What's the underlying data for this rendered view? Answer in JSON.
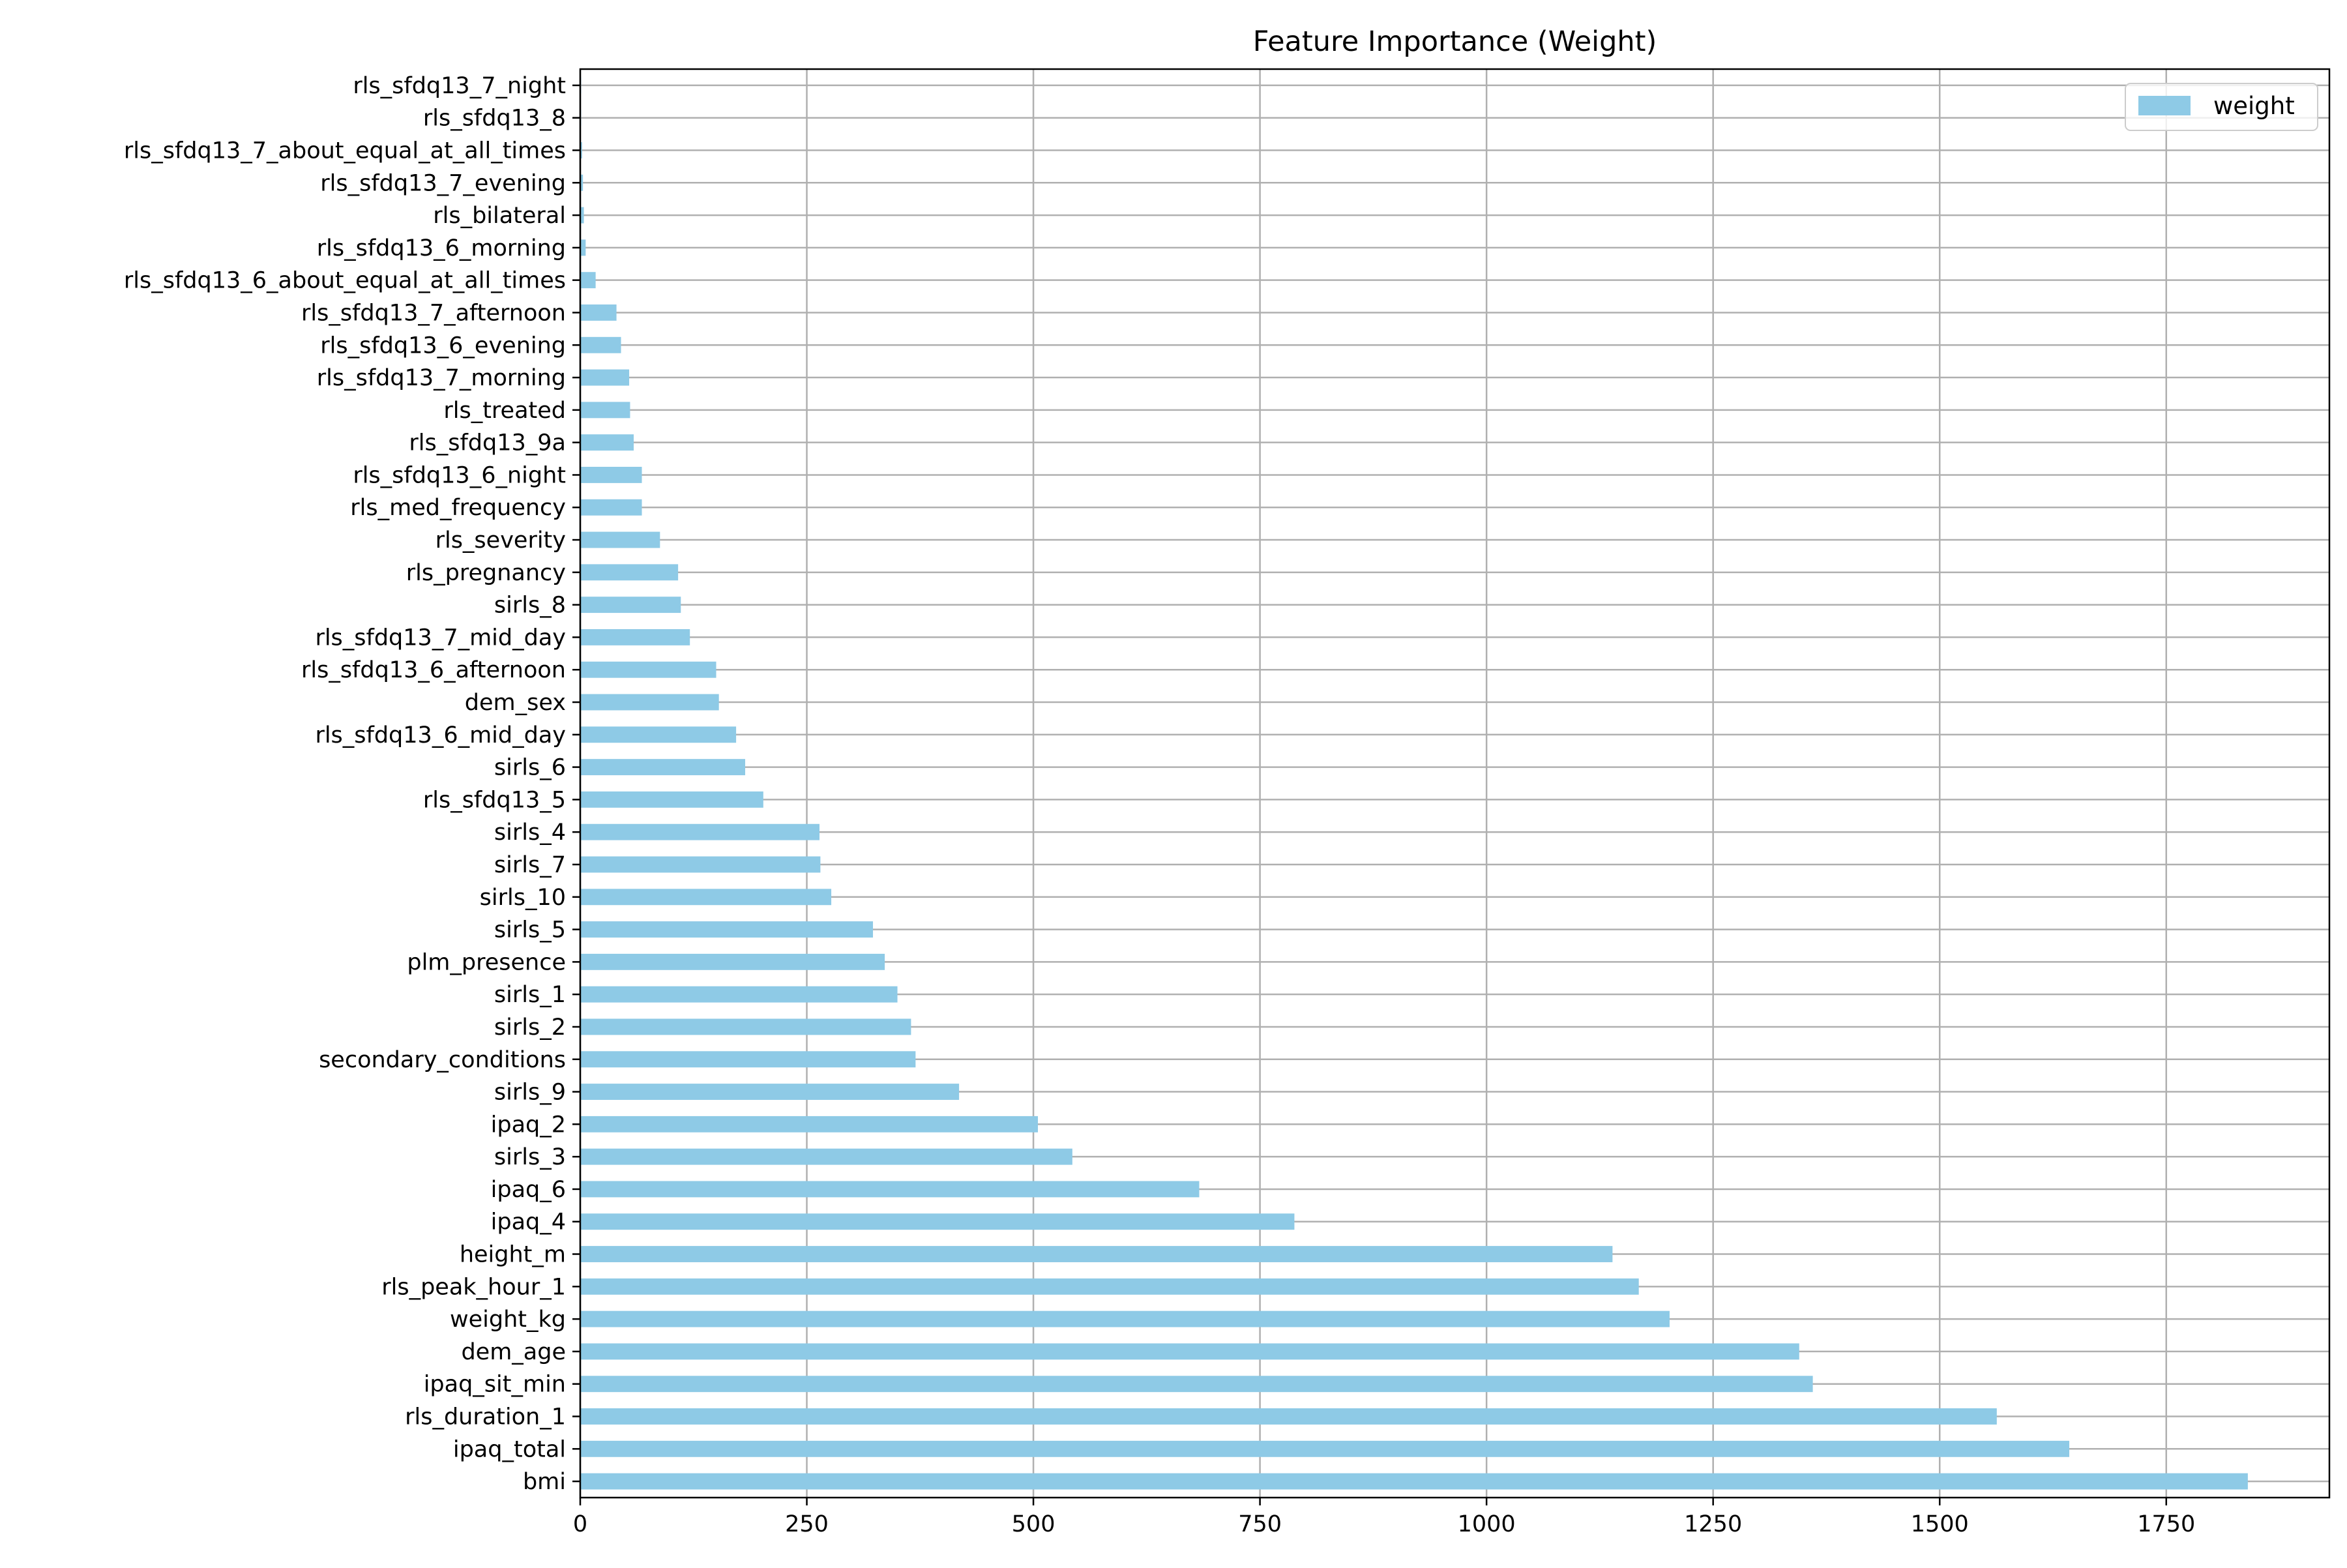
{
  "chart_data": {
    "type": "bar",
    "orientation": "horizontal",
    "title": "Feature Importance (Weight)",
    "xlabel": "",
    "ylabel": "",
    "xlim": [
      0,
      1930
    ],
    "xticks": [
      0,
      250,
      500,
      750,
      1000,
      1250,
      1500,
      1750
    ],
    "grid": true,
    "legend": {
      "placement": "top-right",
      "entries": [
        "weight"
      ]
    },
    "bar_color": "#8ecae6",
    "categories": [
      "bmi",
      "ipaq_total",
      "rls_duration_1",
      "ipaq_sit_min",
      "dem_age",
      "weight_kg",
      "rls_peak_hour_1",
      "height_m",
      "ipaq_4",
      "ipaq_6",
      "sirls_3",
      "ipaq_2",
      "sirls_9",
      "secondary_conditions",
      "sirls_2",
      "sirls_1",
      "plm_presence",
      "sirls_5",
      "sirls_10",
      "sirls_7",
      "sirls_4",
      "rls_sfdq13_5",
      "sirls_6",
      "rls_sfdq13_6_mid_day",
      "dem_sex",
      "rls_sfdq13_6_afternoon",
      "rls_sfdq13_7_mid_day",
      "sirls_8",
      "rls_pregnancy",
      "rls_severity",
      "rls_med_frequency",
      "rls_sfdq13_6_night",
      "rls_sfdq13_9a",
      "rls_treated",
      "rls_sfdq13_7_morning",
      "rls_sfdq13_6_evening",
      "rls_sfdq13_7_afternoon",
      "rls_sfdq13_6_about_equal_at_all_times",
      "rls_sfdq13_6_morning",
      "rls_bilateral",
      "rls_sfdq13_7_evening",
      "rls_sfdq13_7_about_equal_at_all_times",
      "rls_sfdq13_8",
      "rls_sfdq13_7_night"
    ],
    "series": [
      {
        "name": "weight",
        "values": [
          1840,
          1643,
          1563,
          1360,
          1345,
          1202,
          1168,
          1139,
          788,
          683,
          543,
          505,
          418,
          370,
          365,
          350,
          336,
          323,
          277,
          265,
          264,
          202,
          182,
          172,
          153,
          150,
          121,
          111,
          108,
          88,
          68,
          68,
          59,
          55,
          54,
          45,
          40,
          17,
          6,
          4,
          3,
          2,
          1,
          1
        ]
      }
    ]
  }
}
